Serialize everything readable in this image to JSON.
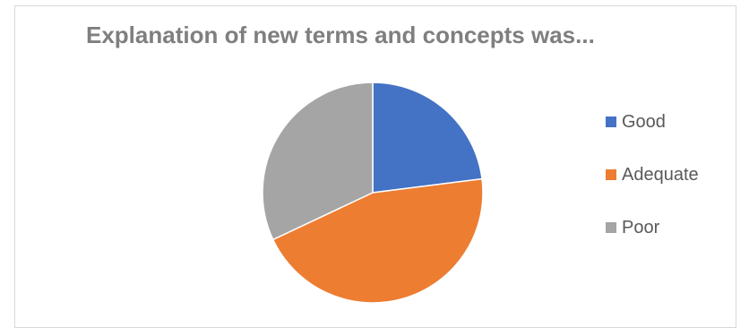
{
  "chart_data": {
    "type": "pie",
    "title": "Explanation of new terms and concepts was...",
    "categories": [
      "Good",
      "Adequate",
      "Poor"
    ],
    "values": [
      23,
      45,
      32
    ],
    "colors": [
      "#4472c4",
      "#ed7d31",
      "#a5a5a5"
    ],
    "legend_position": "right",
    "start_angle": "top, clockwise"
  }
}
